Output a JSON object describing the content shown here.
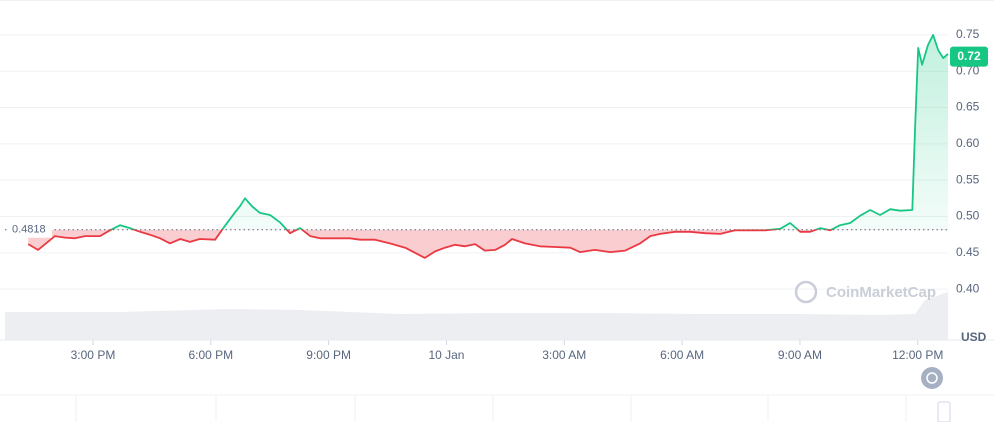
{
  "chart_data": {
    "type": "line",
    "x": [
      13.35,
      13.6,
      13.85,
      14.03,
      14.29,
      14.54,
      14.8,
      15.18,
      15.43,
      15.69,
      15.94,
      16.2,
      16.45,
      16.71,
      16.96,
      17.22,
      17.47,
      17.72,
      18.11,
      18.36,
      18.62,
      18.74,
      18.87,
      19.05,
      19.25,
      19.51,
      19.76,
      20.02,
      20.27,
      20.53,
      20.78,
      21.16,
      21.55,
      21.8,
      22.18,
      22.56,
      22.95,
      23.2,
      23.45,
      23.71,
      23.96,
      24.22,
      24.47,
      24.73,
      24.98,
      25.24,
      25.49,
      25.67,
      26.0,
      26.38,
      26.77,
      27.15,
      27.4,
      27.78,
      28.17,
      28.55,
      28.93,
      29.19,
      29.44,
      29.82,
      30.2,
      30.59,
      30.97,
      31.35,
      31.73,
      32.11,
      32.5,
      32.75,
      33.01,
      33.26,
      33.52,
      33.77,
      34.02,
      34.28,
      34.53,
      34.79,
      35.04,
      35.3,
      35.55,
      35.86,
      35.93,
      36.01,
      36.11,
      36.26,
      36.39,
      36.52,
      36.65,
      36.77
    ],
    "series": [
      {
        "color": "#16c784",
        "negative_color": "#ea3943",
        "values": [
          0.462,
          0.454,
          0.465,
          0.473,
          0.471,
          0.47,
          0.473,
          0.473,
          0.481,
          0.488,
          0.484,
          0.479,
          0.475,
          0.47,
          0.463,
          0.469,
          0.465,
          0.469,
          0.468,
          0.487,
          0.506,
          0.514,
          0.525,
          0.514,
          0.505,
          0.502,
          0.492,
          0.477,
          0.484,
          0.473,
          0.47,
          0.47,
          0.47,
          0.468,
          0.468,
          0.463,
          0.457,
          0.45,
          0.443,
          0.452,
          0.457,
          0.461,
          0.459,
          0.462,
          0.453,
          0.454,
          0.461,
          0.469,
          0.463,
          0.459,
          0.458,
          0.457,
          0.451,
          0.454,
          0.451,
          0.453,
          0.463,
          0.473,
          0.476,
          0.479,
          0.479,
          0.477,
          0.476,
          0.481,
          0.481,
          0.481,
          0.483,
          0.491,
          0.479,
          0.479,
          0.484,
          0.481,
          0.488,
          0.491,
          0.501,
          0.509,
          0.502,
          0.51,
          0.508,
          0.509,
          0.619,
          0.732,
          0.709,
          0.736,
          0.75,
          0.729,
          0.718,
          0.724
        ]
      }
    ],
    "baseline": 0.4818,
    "current_price": 0.72,
    "y_label": "USD",
    "watermark": "CoinMarketCap",
    "xlim": [
      12.76,
      36.77
    ],
    "xticks": [
      {
        "value": 15,
        "label": "3:00 PM"
      },
      {
        "value": 18,
        "label": "6:00 PM"
      },
      {
        "value": 21,
        "label": "9:00 PM"
      },
      {
        "value": 24,
        "label": "10 Jan"
      },
      {
        "value": 27,
        "label": "3:00 AM"
      },
      {
        "value": 30,
        "label": "6:00 AM"
      },
      {
        "value": 33,
        "label": "9:00 AM"
      },
      {
        "value": 36,
        "label": "12:00 PM"
      }
    ],
    "ylim": [
      0.33,
      0.798
    ],
    "yticks": [
      {
        "value": 0.4,
        "label": "0.40"
      },
      {
        "value": 0.45,
        "label": "0.45"
      },
      {
        "value": 0.5,
        "label": "0.50"
      },
      {
        "value": 0.55,
        "label": "0.55"
      },
      {
        "value": 0.6,
        "label": "0.60"
      },
      {
        "value": 0.65,
        "label": "0.65"
      },
      {
        "value": 0.7,
        "label": "0.70"
      },
      {
        "value": 0.75,
        "label": "0.75"
      }
    ],
    "grid": true
  }
}
